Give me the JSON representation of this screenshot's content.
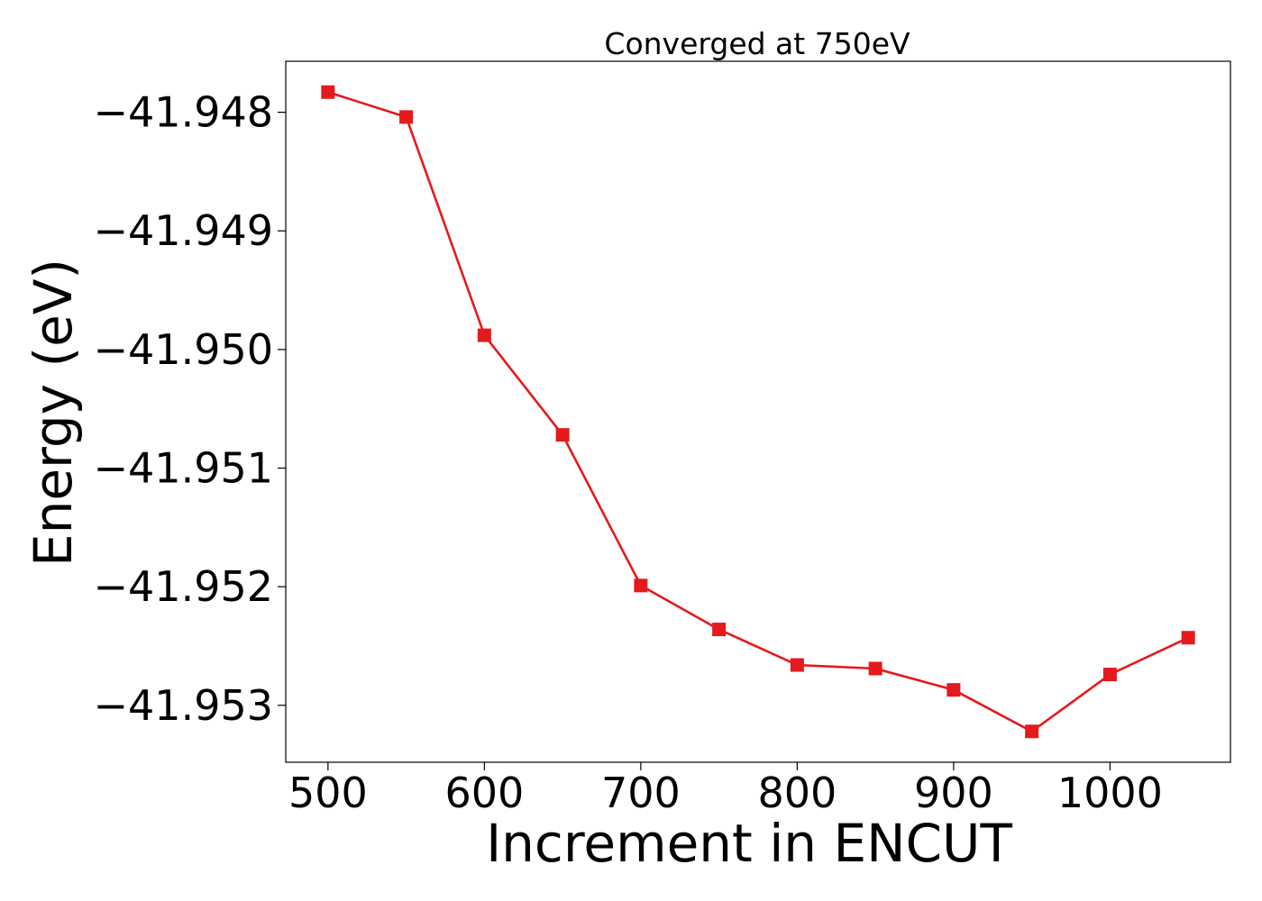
{
  "chart_data": {
    "type": "line",
    "title": "Converged at 750eV",
    "xlabel": "Increment in ENCUT",
    "ylabel": "Energy (eV)",
    "x": [
      500,
      550,
      600,
      650,
      700,
      750,
      800,
      850,
      900,
      950,
      1000,
      1050
    ],
    "series": [
      {
        "values": [
          -41.94783,
          -41.94804,
          -41.94988,
          -41.95072,
          -41.95199,
          -41.95236,
          -41.95266,
          -41.95269,
          -41.95287,
          -41.95322,
          -41.95274,
          -41.95243
        ],
        "color": "#e41a1c",
        "marker": "square"
      }
    ],
    "xlim": [
      473,
      1077
    ],
    "ylim": [
      -41.95348,
      -41.94757
    ],
    "xticks": [
      500,
      600,
      700,
      800,
      900,
      1000
    ],
    "xtick_labels": [
      "500",
      "600",
      "700",
      "800",
      "900",
      "1000"
    ],
    "yticks": [
      -41.948,
      -41.949,
      -41.95,
      -41.951,
      -41.952,
      -41.953
    ],
    "ytick_labels": [
      "−41.948",
      "−41.949",
      "−41.950",
      "−41.951",
      "−41.952",
      "−41.953"
    ],
    "grid": false,
    "legend": "none"
  }
}
